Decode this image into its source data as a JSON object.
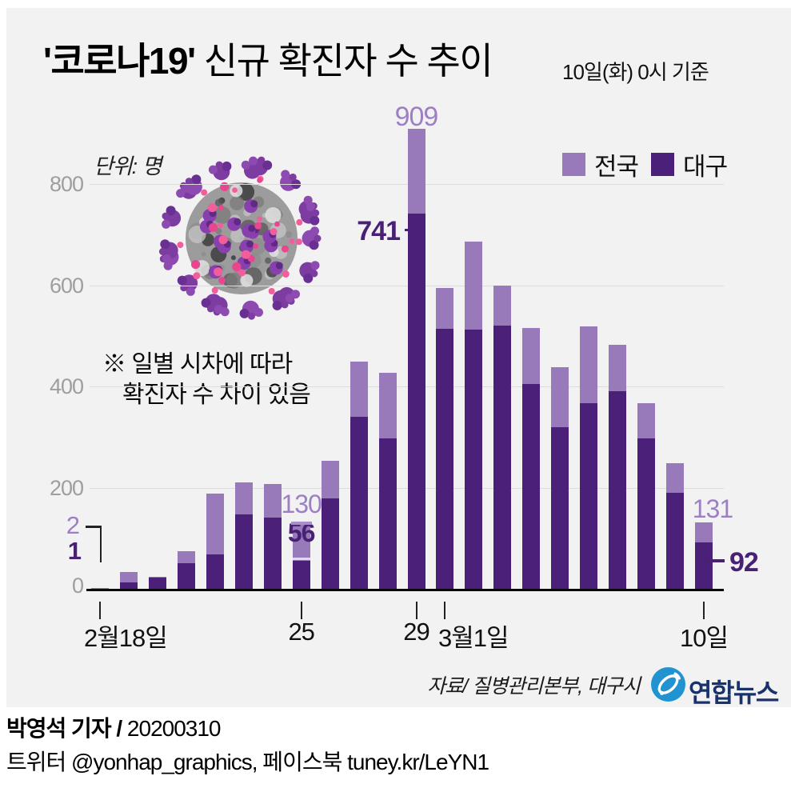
{
  "header": {
    "title_strong": "'코로나19'",
    "title_rest": " 신규 확진자 수 추이",
    "asof": "10일(화) 0시 기준"
  },
  "chart": {
    "unit_label": "단위: 명",
    "note_line1": "※ 일별 시차에 따라",
    "note_line2": "확진자 수 차이 있음"
  },
  "chart_data": {
    "type": "bar",
    "title": "'코로나19' 신규 확진자 수 추이",
    "subtitle": "10일(화) 0시 기준",
    "unit": "명",
    "stacking": "대구 series is drawn overlaid at the base of the 전국 total bar",
    "categories": [
      "2월18일",
      "2월19일",
      "2월20일",
      "2월21일",
      "2월22일",
      "2월23일",
      "2월24일",
      "2월25일",
      "2월26일",
      "2월27일",
      "2월28일",
      "2월29일",
      "3월1일",
      "3월2일",
      "3월3일",
      "3월4일",
      "3월5일",
      "3월6일",
      "3월7일",
      "3월8일",
      "3월9일",
      "3월10일"
    ],
    "series": [
      {
        "name": "전국",
        "color": "#9879b9",
        "values": [
          2,
          33,
          24,
          75,
          189,
          210,
          207,
          130,
          253,
          449,
          427,
          909,
          595,
          686,
          600,
          516,
          438,
          518,
          483,
          367,
          248,
          131
        ]
      },
      {
        "name": "대구",
        "color": "#4a2078",
        "values": [
          1,
          12,
          22,
          51,
          68,
          147,
          141,
          56,
          178,
          340,
          298,
          741,
          514,
          513,
          520,
          405,
          320,
          367,
          390,
          297,
          190,
          92
        ]
      }
    ],
    "ylim": [
      0,
      909
    ],
    "yticks": [
      0,
      200,
      400,
      600,
      800
    ],
    "grid": true,
    "legend_position": "top-right",
    "x_axis_ticks": [
      {
        "index": 0,
        "label": "2월18일",
        "align": "left"
      },
      {
        "index": 7,
        "label": "25",
        "align": "center"
      },
      {
        "index": 11,
        "label": "29",
        "align": "center"
      },
      {
        "index": 12,
        "label": "3월1일",
        "align": "left"
      },
      {
        "index": 21,
        "label": "10일",
        "align": "center"
      }
    ],
    "annotations": [
      {
        "index": 0,
        "pos": "bracket-left",
        "total_label": "2",
        "daegu_label": "1"
      },
      {
        "index": 7,
        "pos": "above",
        "total_label": "130",
        "daegu_label": "56"
      },
      {
        "index": 11,
        "pos": "peak",
        "total_label": "909",
        "daegu_label": "741"
      },
      {
        "index": 21,
        "pos": "right",
        "total_label": "131",
        "daegu_label": "92"
      }
    ]
  },
  "colors": {
    "nationwide": "#9879b9",
    "daegu": "#4a2078",
    "label_light": "#9d7fc4",
    "label_dark": "#482074",
    "axis_gray": "#9e9e9e",
    "card_bg": "#f2f2f3",
    "logo_blue": "#2193d1",
    "logo_navy": "#19326b"
  },
  "source_line": "자료/  질병관리본부, 대구시",
  "logo": {
    "name": "연합뉴스"
  },
  "footer": {
    "byline_bold": "박영석 기자 /",
    "byline_date": "20200310",
    "line2": "트위터 @yonhap_graphics, 페이스북 tuney.kr/LeYN1"
  }
}
